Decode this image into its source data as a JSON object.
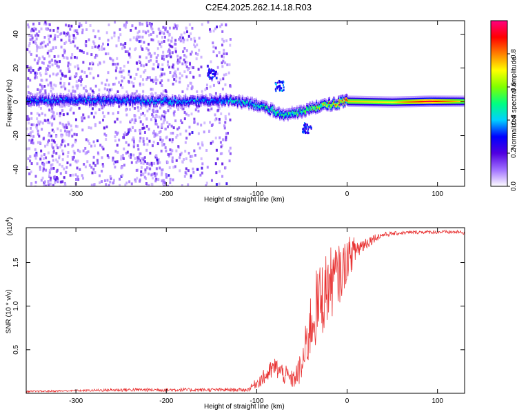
{
  "title": "C2E4.2025.262.14.18.R03",
  "chart_data": [
    {
      "type": "heatmap",
      "title": "C2E4.2025.262.14.18.R03",
      "xlabel": "Height of straight line (km)",
      "ylabel": "Frequency (Hz)",
      "xlim": [
        -355,
        130
      ],
      "ylim": [
        -50,
        48
      ],
      "xticks": [
        -300,
        -200,
        -100,
        0,
        100
      ],
      "xtick_labels": [
        "-300",
        "-200",
        "-100",
        "0",
        "100"
      ],
      "yticks": [
        -40,
        -20,
        0,
        20,
        40
      ],
      "ytick_labels": [
        "-40",
        "-20",
        "0",
        "20",
        "40"
      ],
      "colorbar": {
        "label": "Normalized spectral amplitude",
        "range": [
          0,
          1
        ],
        "ticks": [
          0.0,
          0.2,
          0.4,
          0.6,
          0.8
        ],
        "tick_labels": [
          "0.0",
          "0.2",
          "0.4",
          "0.6",
          "0.8"
        ],
        "colormap": [
          "#ffffff",
          "#a070ff",
          "#5000e0",
          "#0000ff",
          "#00d0ff",
          "#00ff80",
          "#80ff00",
          "#ffff00",
          "#ff8000",
          "#ff0000",
          "#ff0080"
        ]
      },
      "ridge": [
        {
          "x": -350,
          "f": 1.5,
          "amp": 0.35
        },
        {
          "x": -300,
          "f": 1.5,
          "amp": 0.35
        },
        {
          "x": -250,
          "f": 1.5,
          "amp": 0.35
        },
        {
          "x": -200,
          "f": 1.0,
          "amp": 0.38
        },
        {
          "x": -150,
          "f": 1.0,
          "amp": 0.35
        },
        {
          "x": -130,
          "f": 1.5,
          "amp": 0.4
        },
        {
          "x": -110,
          "f": 0.0,
          "amp": 0.42
        },
        {
          "x": -90,
          "f": -3.0,
          "amp": 0.45
        },
        {
          "x": -70,
          "f": -7.0,
          "amp": 0.48
        },
        {
          "x": -50,
          "f": -5.0,
          "amp": 0.5
        },
        {
          "x": -40,
          "f": -3.0,
          "amp": 0.55
        },
        {
          "x": -20,
          "f": -1.0,
          "amp": 0.7
        },
        {
          "x": 0,
          "f": 1.0,
          "amp": 0.75
        },
        {
          "x": 50,
          "f": 0.5,
          "amp": 0.7
        },
        {
          "x": 90,
          "f": 1.0,
          "amp": 0.95
        },
        {
          "x": 130,
          "f": 1.0,
          "amp": 0.7
        }
      ],
      "features": [
        {
          "x": -150,
          "f": 17,
          "amp": 0.3
        },
        {
          "x": -75,
          "f": 10,
          "amp": 0.35
        },
        {
          "x": -45,
          "f": -15,
          "amp": 0.3
        }
      ]
    },
    {
      "type": "line",
      "xlabel": "Height of straight line (km)",
      "ylabel": "SNR (10 * v/v)",
      "y_multiplier": "(x10",
      "y_multiplier_exp": "4",
      "y_multiplier_close": ")",
      "xlim": [
        -355,
        130
      ],
      "ylim": [
        0,
        1.9
      ],
      "xticks": [
        -300,
        -200,
        -100,
        0,
        100
      ],
      "xtick_labels": [
        "-300",
        "-200",
        "-100",
        "0",
        "100"
      ],
      "yticks": [
        0.5,
        1.0,
        1.5
      ],
      "ytick_labels": [
        "0.5",
        "1.0",
        "1.5"
      ],
      "series": [
        {
          "name": "SNR",
          "color": "#e83030",
          "x": [
            -355,
            -300,
            -250,
            -200,
            -150,
            -110,
            -100,
            -90,
            -80,
            -70,
            -60,
            -50,
            -45,
            -40,
            -35,
            -30,
            -25,
            -20,
            -15,
            -10,
            -5,
            0,
            10,
            20,
            30,
            40,
            60,
            80,
            100,
            120,
            130
          ],
          "y": [
            0.02,
            0.03,
            0.04,
            0.04,
            0.04,
            0.04,
            0.12,
            0.2,
            0.3,
            0.22,
            0.15,
            0.3,
            0.55,
            0.8,
            0.95,
            1.05,
            1.15,
            1.25,
            1.3,
            1.35,
            1.4,
            1.55,
            1.65,
            1.72,
            1.78,
            1.82,
            1.84,
            1.85,
            1.85,
            1.85,
            1.84
          ],
          "noise": [
            0.01,
            0.01,
            0.02,
            0.02,
            0.02,
            0.02,
            0.06,
            0.1,
            0.12,
            0.12,
            0.1,
            0.2,
            0.3,
            0.4,
            0.45,
            0.45,
            0.45,
            0.42,
            0.4,
            0.35,
            0.3,
            0.25,
            0.15,
            0.08,
            0.05,
            0.03,
            0.02,
            0.02,
            0.02,
            0.02,
            0.02
          ]
        }
      ]
    }
  ]
}
